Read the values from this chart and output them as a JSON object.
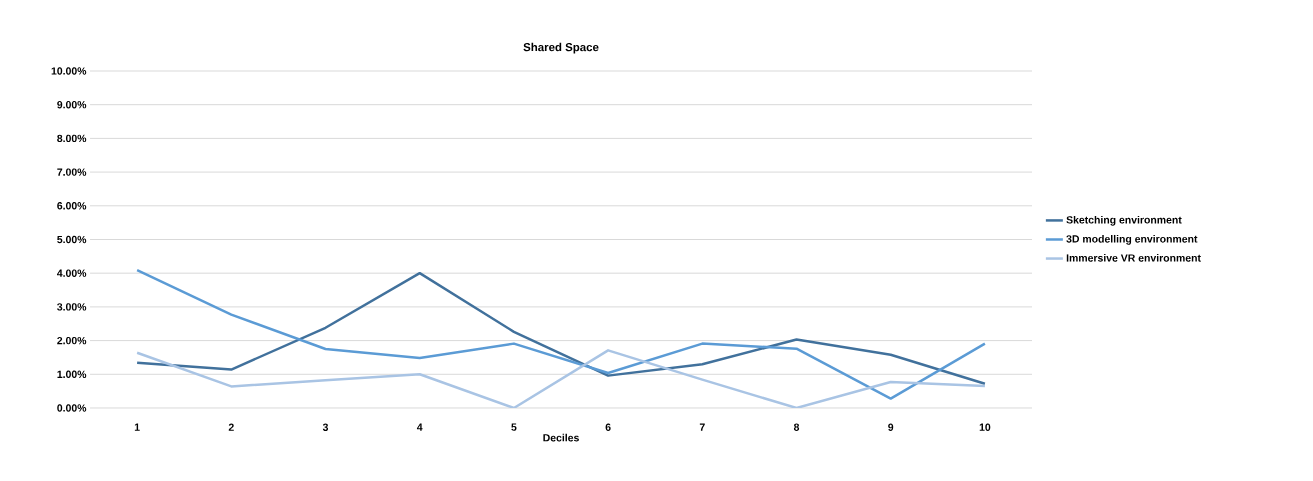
{
  "chart_data": {
    "type": "line",
    "title": "Shared Space",
    "xlabel": "Deciles",
    "categories": [
      "1",
      "2",
      "3",
      "4",
      "5",
      "6",
      "7",
      "8",
      "9",
      "10"
    ],
    "series": [
      {
        "name": "Sketching environment",
        "color": "#41719c",
        "values": [
          1.34,
          1.14,
          2.38,
          4.0,
          2.26,
          0.96,
          1.3,
          2.03,
          1.58,
          0.72
        ]
      },
      {
        "name": "3D modelling environment",
        "color": "#5b9bd5",
        "values": [
          4.09,
          2.77,
          1.75,
          1.48,
          1.91,
          1.04,
          1.91,
          1.76,
          0.28,
          1.91
        ]
      },
      {
        "name": "Immersive VR environment",
        "color": "#a9c4e4",
        "values": [
          1.64,
          0.64,
          0.82,
          1.0,
          0.0,
          1.71,
          0.84,
          0.0,
          0.77,
          0.65
        ]
      }
    ],
    "ylim": [
      0,
      10
    ],
    "yticks": [
      {
        "value": 0,
        "label": "0.00%"
      },
      {
        "value": 1,
        "label": "1.00%"
      },
      {
        "value": 2,
        "label": "2.00%"
      },
      {
        "value": 3,
        "label": "3.00%"
      },
      {
        "value": 4,
        "label": "4.00%"
      },
      {
        "value": 5,
        "label": "5.00%"
      },
      {
        "value": 6,
        "label": "6.00%"
      },
      {
        "value": 7,
        "label": "7.00%"
      },
      {
        "value": 8,
        "label": "8.00%"
      },
      {
        "value": 9,
        "label": "9.00%"
      },
      {
        "value": 10,
        "label": "10.00%"
      }
    ],
    "grid": "y",
    "legend": "right",
    "marker": "none",
    "line_style": "solid"
  }
}
